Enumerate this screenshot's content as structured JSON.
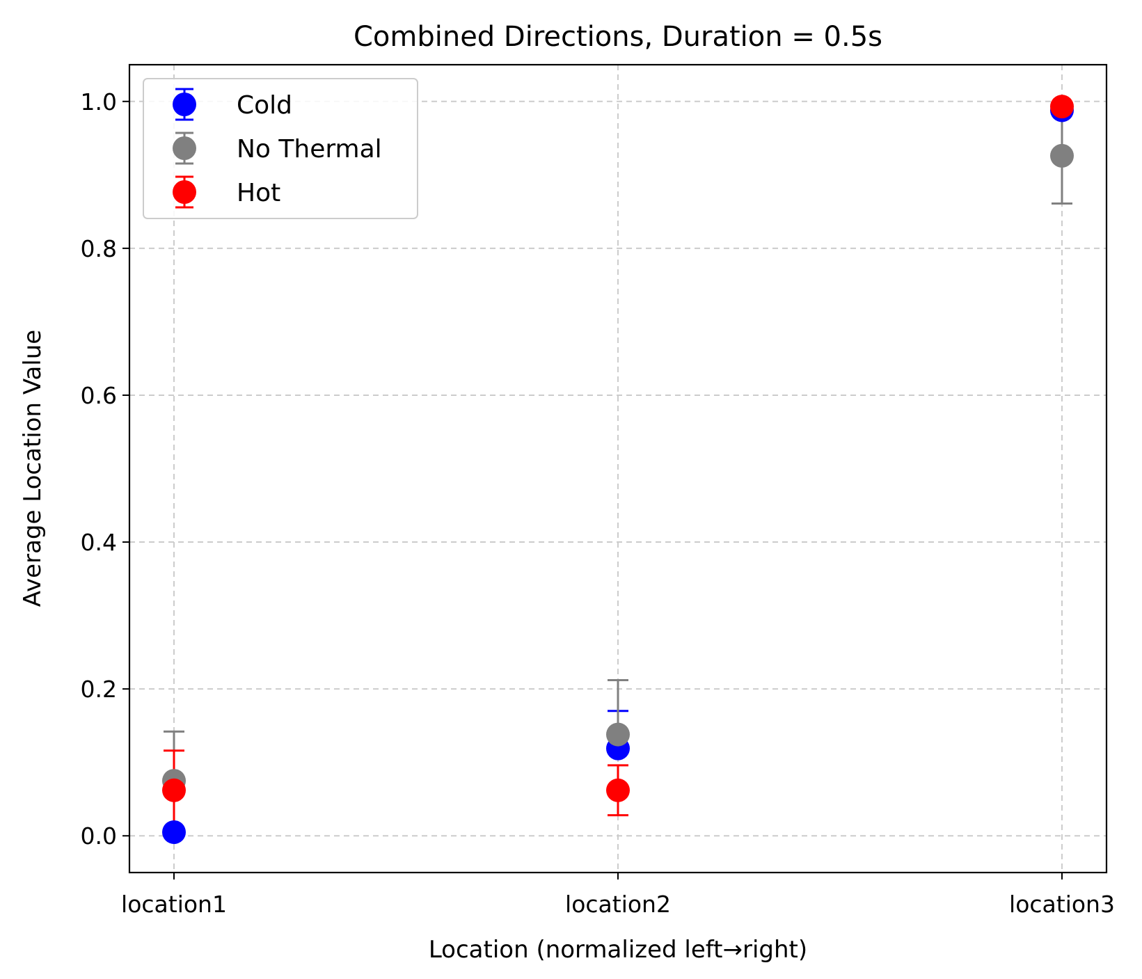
{
  "chart_data": {
    "type": "scatter",
    "title": "Combined Directions, Duration = 0.5s",
    "xlabel": "Location (normalized left→right)",
    "ylabel": "Average Location Value",
    "categories": [
      "location1",
      "location2",
      "location3"
    ],
    "ylim": [
      -0.05,
      1.05
    ],
    "yticks": [
      "0.0",
      "0.2",
      "0.4",
      "0.6",
      "0.8",
      "1.0"
    ],
    "ytick_values": [
      0.0,
      0.2,
      0.4,
      0.6,
      0.8,
      1.0
    ],
    "grid": true,
    "legend_position": "upper-left",
    "series": [
      {
        "name": "Cold",
        "color": "#0000ff",
        "values": [
          0.005,
          0.119,
          0.988
        ],
        "err_low": [
          0.0,
          0.0,
          0.0
        ],
        "err_high": [
          0.0,
          0.051,
          0.0
        ]
      },
      {
        "name": "No Thermal",
        "color": "#808080",
        "values": [
          0.075,
          0.138,
          0.926
        ],
        "err_low": [
          0.0,
          0.0,
          0.065
        ],
        "err_high": [
          0.067,
          0.074,
          0.065
        ]
      },
      {
        "name": "Hot",
        "color": "#ff0000",
        "values": [
          0.062,
          0.062,
          0.993
        ],
        "err_low": [
          0.054,
          0.034,
          0.0
        ],
        "err_high": [
          0.054,
          0.034,
          0.0
        ]
      }
    ]
  }
}
